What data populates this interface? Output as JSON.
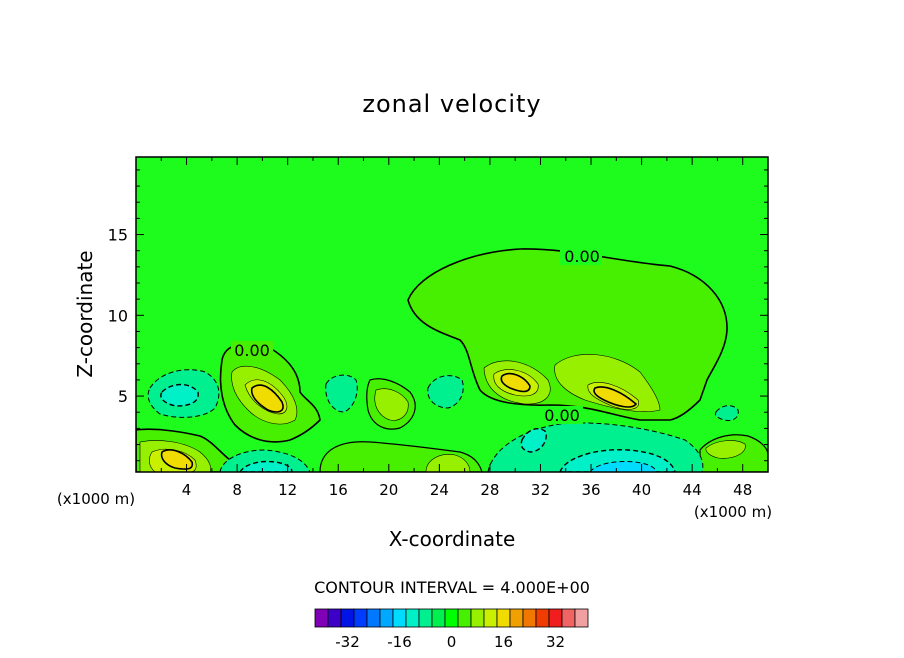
{
  "chart_data": {
    "type": "contour",
    "title": "zonal velocity",
    "xlabel": "X-coordinate",
    "ylabel": "Z-coordinate",
    "x_unit": "(x1000 m)",
    "z_unit": "(x1000 m)",
    "xlim": [
      0,
      50
    ],
    "ylim": [
      0.3,
      19.8
    ],
    "x_ticks": [
      "4",
      "8",
      "12",
      "16",
      "20",
      "24",
      "28",
      "32",
      "36",
      "40",
      "44",
      "48"
    ],
    "y_ticks": [
      "5",
      "10",
      "15"
    ],
    "contour_labels": [
      "0.00",
      "0.00",
      "0.00"
    ],
    "contour_interval": "CONTOUR INTERVAL = 4.000E+00",
    "colorbar": {
      "tick_labels": [
        "-32",
        "-16",
        "0",
        "16",
        "32"
      ],
      "colors": [
        "#7f00b7",
        "#3d00c8",
        "#0014e6",
        "#003cff",
        "#0078ff",
        "#00a8ff",
        "#00dcff",
        "#00f0c8",
        "#00f090",
        "#00f050",
        "#00ff00",
        "#46f000",
        "#96f000",
        "#c8f000",
        "#f0dc00",
        "#f0a000",
        "#f07800",
        "#f03c00",
        "#f01e1e",
        "#f06464",
        "#f0a0a0"
      ]
    },
    "features": [
      {
        "kind": "positive",
        "x": 30,
        "z": 5.8,
        "value": 12
      },
      {
        "kind": "positive",
        "x": 37.5,
        "z": 4.9,
        "value": 12
      },
      {
        "kind": "positive",
        "x": 10,
        "z": 4.8,
        "value": 12
      },
      {
        "kind": "positive",
        "x": 4,
        "z": 1.2,
        "value": 16
      },
      {
        "kind": "positive",
        "x": 25,
        "z": 0.8,
        "value": 8
      },
      {
        "kind": "negative",
        "x": 3,
        "z": 5,
        "value": -8
      },
      {
        "kind": "negative",
        "x": 11,
        "z": 1,
        "value": -8
      },
      {
        "kind": "negative",
        "x": 37,
        "z": 0.8,
        "value": -12
      },
      {
        "kind": "negative",
        "x": 31.5,
        "z": 2,
        "value": -8
      }
    ]
  }
}
